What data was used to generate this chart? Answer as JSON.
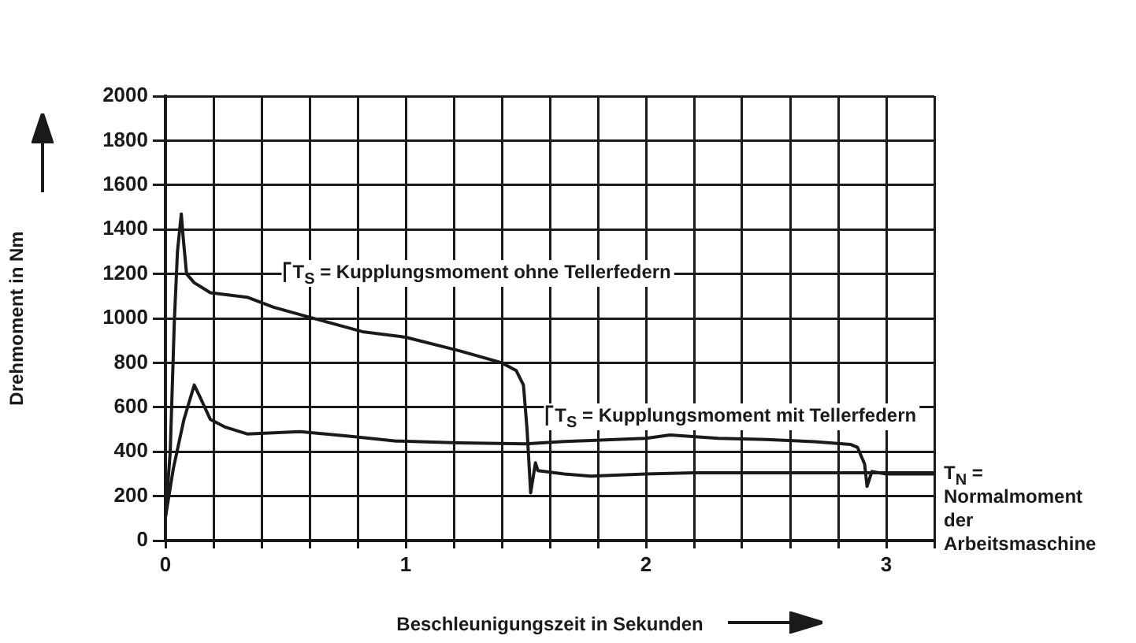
{
  "chart_data": {
    "type": "line",
    "xlabel": "Beschleunigungszeit in Sekunden",
    "ylabel": "Drehmoment in Nm",
    "xlim": [
      0,
      3.2
    ],
    "ylim": [
      0,
      2000
    ],
    "xticks": [
      0,
      {
        "value": 0.2,
        "label": null
      },
      {
        "value": 0.4,
        "label": null
      },
      {
        "value": 0.6,
        "label": null
      },
      {
        "value": 0.8,
        "label": null
      },
      1,
      {
        "value": 1.2,
        "label": null
      },
      {
        "value": 1.4,
        "label": null
      },
      {
        "value": 1.6,
        "label": null
      },
      {
        "value": 1.8,
        "label": null
      },
      2,
      {
        "value": 2.2,
        "label": null
      },
      {
        "value": 2.4,
        "label": null
      },
      {
        "value": 2.6,
        "label": null
      },
      {
        "value": 2.8,
        "label": null
      },
      3,
      {
        "value": 3.2,
        "label": null
      }
    ],
    "yticks": [
      0,
      200,
      400,
      600,
      800,
      1000,
      1200,
      1400,
      1600,
      1800,
      2000
    ],
    "grid": true,
    "legend": false,
    "marker": "none",
    "line_style": "solid",
    "series": [
      {
        "color": "#1a1a1a",
        "x": [
          0,
          0.02,
          0.037,
          0.05,
          0.066,
          0.075,
          0.088,
          0.12,
          0.187,
          0.34,
          0.45,
          0.6,
          0.82,
          1.0,
          1.22,
          1.4,
          1.46,
          1.49,
          1.505,
          1.52,
          1.54,
          1.55,
          1.66,
          1.77,
          2.0,
          2.2,
          2.5,
          2.8,
          3.0,
          3.2
        ],
        "values": [
          105,
          400,
          985,
          1300,
          1470,
          1350,
          1200,
          1160,
          1115,
          1095,
          1050,
          1005,
          940,
          915,
          855,
          800,
          765,
          700,
          500,
          215,
          350,
          315,
          300,
          290,
          300,
          305,
          305,
          305,
          305,
          305
        ]
      },
      {
        "color": "#1a1a1a",
        "x": [
          0,
          0.033,
          0.077,
          0.12,
          0.14,
          0.187,
          0.25,
          0.34,
          0.56,
          0.78,
          0.96,
          1.22,
          1.5,
          1.66,
          2.0,
          2.1,
          2.3,
          2.5,
          2.7,
          2.85,
          2.88,
          2.91,
          2.92,
          2.94,
          3.0,
          3.2
        ],
        "values": [
          105,
          325,
          545,
          700,
          655,
          545,
          510,
          480,
          490,
          468,
          448,
          440,
          435,
          446,
          460,
          475,
          460,
          455,
          445,
          433,
          420,
          344,
          244,
          310,
          300,
          300
        ]
      }
    ],
    "annotations": [
      "T$_{S}$ = Kupplungsmoment ohne Tellerfedern",
      "T$_{S}$ = Kupplungsmoment mit Tellerfedern",
      {
        "text": "T$_{N}$ = Normalmoment der Arbeitsmaschine",
        "x": 3.2,
        "y": 300
      }
    ]
  }
}
